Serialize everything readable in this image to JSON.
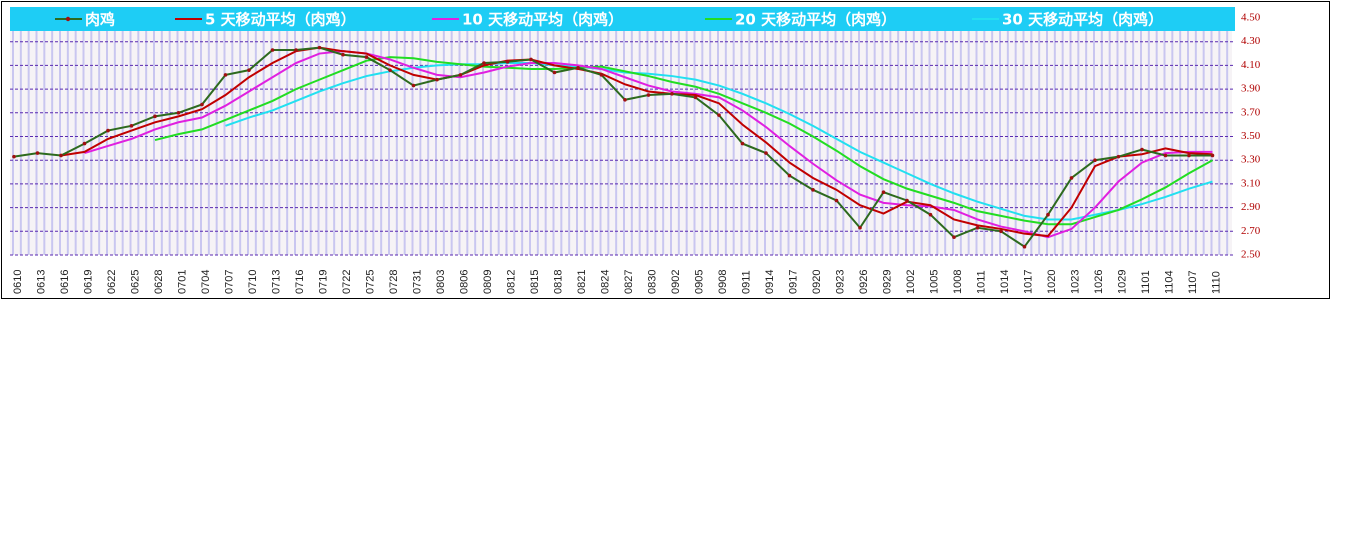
{
  "chart_data": {
    "type": "line",
    "categories": [
      "0610",
      "0613",
      "0616",
      "0619",
      "0622",
      "0625",
      "0628",
      "0701",
      "0704",
      "0707",
      "0710",
      "0713",
      "0716",
      "0719",
      "0722",
      "0725",
      "0728",
      "0731",
      "0803",
      "0806",
      "0809",
      "0812",
      "0815",
      "0818",
      "0821",
      "0824",
      "0827",
      "0830",
      "0902",
      "0905",
      "0908",
      "0911",
      "0914",
      "0917",
      "0920",
      "0923",
      "0926",
      "0929",
      "1002",
      "1005",
      "1008",
      "1011",
      "1014",
      "1017",
      "1020",
      "1023",
      "1026",
      "1029",
      "1101",
      "1104",
      "1107",
      "1110"
    ],
    "series": [
      {
        "name": "肉鸡",
        "color": "#2d6a1e",
        "values": [
          3.33,
          3.36,
          3.34,
          3.44,
          3.55,
          3.59,
          3.67,
          3.7,
          3.77,
          4.02,
          4.06,
          4.23,
          4.23,
          4.25,
          4.19,
          4.17,
          4.06,
          3.93,
          3.98,
          4.02,
          4.12,
          4.13,
          4.15,
          4.04,
          4.08,
          4.02,
          3.81,
          3.85,
          3.86,
          3.83,
          3.68,
          3.44,
          3.36,
          3.17,
          3.05,
          2.96,
          2.73,
          3.03,
          2.96,
          2.84,
          2.65,
          2.73,
          2.7,
          2.57,
          2.84,
          3.15,
          3.3,
          3.33,
          3.39,
          3.34,
          3.34,
          3.34
        ]
      },
      {
        "name": "5 天移动平均（肉鸡）",
        "color": "#c00000",
        "values": [
          null,
          null,
          3.34,
          3.37,
          3.48,
          3.55,
          3.62,
          3.67,
          3.73,
          3.85,
          4.0,
          4.12,
          4.22,
          4.25,
          4.22,
          4.2,
          4.1,
          4.02,
          3.98,
          4.02,
          4.1,
          4.14,
          4.15,
          4.1,
          4.07,
          4.03,
          3.94,
          3.88,
          3.86,
          3.85,
          3.78,
          3.6,
          3.45,
          3.28,
          3.15,
          3.05,
          2.92,
          2.85,
          2.95,
          2.92,
          2.8,
          2.75,
          2.72,
          2.68,
          2.66,
          2.9,
          3.25,
          3.33,
          3.35,
          3.4,
          3.36,
          3.35
        ]
      },
      {
        "name": "10 天移动平均（肉鸡）",
        "color": "#e020e0",
        "values": [
          null,
          null,
          null,
          3.36,
          3.42,
          3.48,
          3.56,
          3.62,
          3.66,
          3.76,
          3.88,
          4.0,
          4.12,
          4.2,
          4.22,
          4.2,
          4.15,
          4.08,
          4.02,
          4.0,
          4.04,
          4.09,
          4.12,
          4.12,
          4.1,
          4.07,
          4.0,
          3.93,
          3.88,
          3.86,
          3.83,
          3.72,
          3.58,
          3.42,
          3.27,
          3.13,
          3.01,
          2.94,
          2.92,
          2.91,
          2.88,
          2.8,
          2.74,
          2.7,
          2.65,
          2.72,
          2.9,
          3.12,
          3.28,
          3.36,
          3.37,
          3.37
        ]
      },
      {
        "name": "20 天移动平均（肉鸡）",
        "color": "#22dd22",
        "values": [
          null,
          null,
          null,
          null,
          null,
          null,
          3.47,
          3.52,
          3.56,
          3.64,
          3.72,
          3.8,
          3.9,
          3.98,
          4.06,
          4.14,
          4.17,
          4.16,
          4.13,
          4.11,
          4.09,
          4.08,
          4.07,
          4.07,
          4.08,
          4.09,
          4.05,
          4.01,
          3.96,
          3.92,
          3.86,
          3.78,
          3.7,
          3.61,
          3.5,
          3.38,
          3.25,
          3.14,
          3.06,
          3.0,
          2.94,
          2.87,
          2.83,
          2.79,
          2.76,
          2.76,
          2.82,
          2.88,
          2.97,
          3.07,
          3.19,
          3.3
        ]
      },
      {
        "name": "30 天移动平均（肉鸡）",
        "color": "#22e0f0",
        "values": [
          null,
          null,
          null,
          null,
          null,
          null,
          null,
          null,
          null,
          3.59,
          3.66,
          3.72,
          3.8,
          3.88,
          3.95,
          4.01,
          4.05,
          4.08,
          4.1,
          4.11,
          4.11,
          4.12,
          4.12,
          4.1,
          4.09,
          4.07,
          4.04,
          4.03,
          4.01,
          3.98,
          3.93,
          3.86,
          3.78,
          3.69,
          3.59,
          3.48,
          3.37,
          3.28,
          3.19,
          3.1,
          3.02,
          2.95,
          2.89,
          2.83,
          2.8,
          2.8,
          2.84,
          2.88,
          2.93,
          2.99,
          3.06,
          3.12
        ]
      }
    ],
    "ylim": [
      2.5,
      4.5
    ],
    "yticks": [
      {
        "value": 2.5,
        "label": "2.50"
      },
      {
        "value": 2.7,
        "label": "2.70"
      },
      {
        "value": 2.9,
        "label": "2.90"
      },
      {
        "value": 3.1,
        "label": "3.10"
      },
      {
        "value": 3.3,
        "label": "3.30"
      },
      {
        "value": 3.5,
        "label": "3.50"
      },
      {
        "value": 3.7,
        "label": "3.70"
      },
      {
        "value": 3.9,
        "label": "3.90"
      },
      {
        "value": 4.1,
        "label": "4.10"
      },
      {
        "value": 4.3,
        "label": "4.30"
      },
      {
        "value": 4.5,
        "label": "4.50"
      }
    ],
    "grid": true,
    "legend_color": "#1ecdf5"
  }
}
